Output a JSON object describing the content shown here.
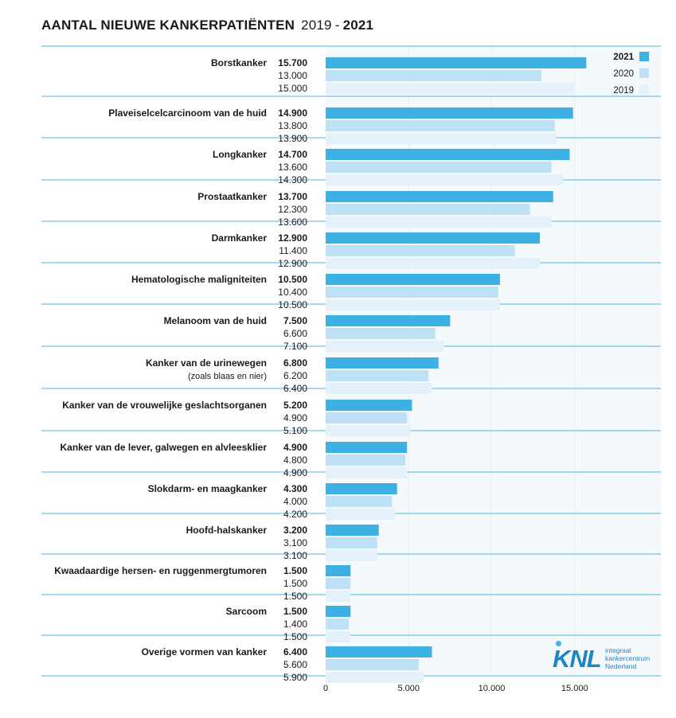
{
  "title": {
    "main": "AANTAL NIEUWE KANKERPATIËNTEN",
    "year_start": "2019",
    "dash": "-",
    "year_end": "2021"
  },
  "logo": {
    "mark": "KNL",
    "line1": "integraal",
    "line2": "kankercentrum",
    "line3": "Nederland"
  },
  "colors": {
    "2021": "#3eb1e4",
    "2020": "#bfe1f5",
    "2019": "#e4f1fa",
    "grid": "#4fb6e3",
    "panel": "#f4f9fc"
  },
  "chart_data": {
    "type": "bar",
    "orientation": "horizontal",
    "xlim": [
      0,
      20000
    ],
    "xticks": [
      0,
      5000,
      10000,
      15000
    ],
    "xtick_labels": [
      "0",
      "5.000",
      "10.000",
      "15.000"
    ],
    "legend": {
      "position": "top-right",
      "entries": [
        "2021",
        "2020",
        "2019"
      ]
    },
    "categories": [
      {
        "label": "Borstkanker",
        "sublabel": "",
        "v2021": 15700,
        "v2020": 13000,
        "v2019": 15000,
        "l2021": "15.700",
        "l2020": "13.000",
        "l2019": "15.000"
      },
      {
        "label": "Plaveiselcelcarcinoom van de huid",
        "sublabel": "",
        "v2021": 14900,
        "v2020": 13800,
        "v2019": 13900,
        "l2021": "14.900",
        "l2020": "13.800",
        "l2019": "13.900"
      },
      {
        "label": "Longkanker",
        "sublabel": "",
        "v2021": 14700,
        "v2020": 13600,
        "v2019": 14300,
        "l2021": "14.700",
        "l2020": "13.600",
        "l2019": "14.300"
      },
      {
        "label": "Prostaatkanker",
        "sublabel": "",
        "v2021": 13700,
        "v2020": 12300,
        "v2019": 13600,
        "l2021": "13.700",
        "l2020": "12.300",
        "l2019": "13.600"
      },
      {
        "label": "Darmkanker",
        "sublabel": "",
        "v2021": 12900,
        "v2020": 11400,
        "v2019": 12900,
        "l2021": "12.900",
        "l2020": "11.400",
        "l2019": "12.900"
      },
      {
        "label": "Hematologische maligniteiten",
        "sublabel": "",
        "v2021": 10500,
        "v2020": 10400,
        "v2019": 10500,
        "l2021": "10.500",
        "l2020": "10.400",
        "l2019": "10.500"
      },
      {
        "label": "Melanoom van de huid",
        "sublabel": "",
        "v2021": 7500,
        "v2020": 6600,
        "v2019": 7100,
        "l2021": "7.500",
        "l2020": "6.600",
        "l2019": "7.100"
      },
      {
        "label": "Kanker van de urinewegen",
        "sublabel": "(zoals blaas en nier)",
        "v2021": 6800,
        "v2020": 6200,
        "v2019": 6400,
        "l2021": "6.800",
        "l2020": "6.200",
        "l2019": "6.400"
      },
      {
        "label": "Kanker van de vrouwelijke geslachtsorganen",
        "sublabel": "",
        "v2021": 5200,
        "v2020": 4900,
        "v2019": 5100,
        "l2021": "5.200",
        "l2020": "4.900",
        "l2019": "5.100"
      },
      {
        "label": "Kanker van de lever, galwegen en alvleesklier",
        "sublabel": "",
        "v2021": 4900,
        "v2020": 4800,
        "v2019": 4900,
        "l2021": "4.900",
        "l2020": "4.800",
        "l2019": "4.900"
      },
      {
        "label": "Slokdarm- en maagkanker",
        "sublabel": "",
        "v2021": 4300,
        "v2020": 4000,
        "v2019": 4200,
        "l2021": "4.300",
        "l2020": "4.000",
        "l2019": "4.200"
      },
      {
        "label": "Hoofd-halskanker",
        "sublabel": "",
        "v2021": 3200,
        "v2020": 3100,
        "v2019": 3100,
        "l2021": "3.200",
        "l2020": "3.100",
        "l2019": "3.100"
      },
      {
        "label": "Kwaadaardige hersen- en ruggenmergtumoren",
        "sublabel": "",
        "v2021": 1500,
        "v2020": 1500,
        "v2019": 1500,
        "l2021": "1.500",
        "l2020": "1.500",
        "l2019": "1.500"
      },
      {
        "label": "Sarcoom",
        "sublabel": "",
        "v2021": 1500,
        "v2020": 1400,
        "v2019": 1500,
        "l2021": "1.500",
        "l2020": "1.400",
        "l2019": "1.500"
      },
      {
        "label": "Overige vormen van kanker",
        "sublabel": "",
        "v2021": 6400,
        "v2020": 5600,
        "v2019": 5900,
        "l2021": "6.400",
        "l2020": "5.600",
        "l2019": "5.900"
      }
    ]
  }
}
